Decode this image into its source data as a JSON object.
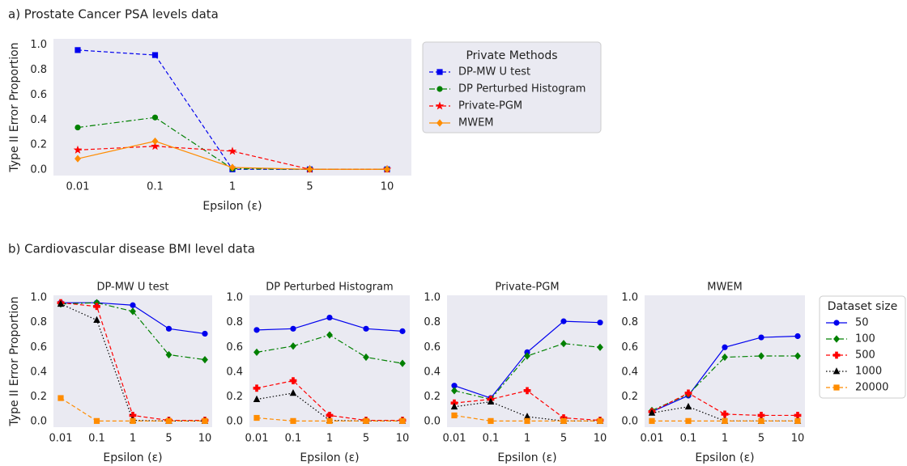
{
  "sections": [
    "a) Prostate Cancer PSA levels data",
    "b) Cardiovascular disease BMI level data"
  ],
  "legend_b": {
    "title": "Dataset size",
    "entries": [
      {
        "name": "50",
        "color": "#0000ee",
        "dash": "solid",
        "marker": "circle"
      },
      {
        "name": "100",
        "color": "#008000",
        "dash": "dashdot",
        "marker": "diamond"
      },
      {
        "name": "500",
        "color": "#ff0000",
        "dash": "dashed",
        "marker": "plus"
      },
      {
        "name": "1000",
        "color": "#000000",
        "dash": "dotted",
        "marker": "triangle"
      },
      {
        "name": "20000",
        "color": "#ff8c00",
        "dash": "dashed",
        "marker": "square"
      }
    ]
  },
  "chart_data": [
    {
      "type": "line",
      "ylabel": "Type II Error Proportion",
      "xlabel": "Epsilon (ε)",
      "legend_title": "Private Methods",
      "grid": false,
      "categories": [
        "0.01",
        "0.1",
        "1",
        "5",
        "10"
      ],
      "ylim": [
        -0.045,
        1.05
      ],
      "yticks": [
        {
          "value": 0,
          "label": "0.0"
        },
        0.2,
        0.4,
        0.6,
        0.8,
        {
          "value": 1,
          "label": "1.0"
        }
      ],
      "series": [
        {
          "name": "DP-MW U test",
          "color": "#0000ee",
          "dash": "dashed",
          "marker": "square",
          "values": [
            0.96,
            0.92,
            0.005,
            0.005,
            0.005
          ]
        },
        {
          "name": "DP Perturbed Histogram",
          "color": "#008000",
          "dash": "dashdot",
          "marker": "circle",
          "values": [
            0.34,
            0.42,
            0.01,
            0.005,
            0.005
          ]
        },
        {
          "name": "Private-PGM",
          "color": "#ff0000",
          "dash": "dashed",
          "marker": "star",
          "values": [
            0.16,
            0.19,
            0.15,
            0.005,
            0.005
          ]
        },
        {
          "name": "MWEM",
          "color": "#ff8c00",
          "dash": "solid",
          "marker": "diamond",
          "values": [
            0.09,
            0.23,
            0.02,
            0.005,
            0.005
          ]
        }
      ]
    },
    {
      "type": "line",
      "title": "DP-MW U test",
      "ylabel": "Type II Error Proportion",
      "xlabel": "Epsilon (ε)",
      "grid": false,
      "categories": [
        "0.01",
        "0.1",
        "1",
        "5",
        "10"
      ],
      "ylim": [
        -0.045,
        1.02
      ],
      "yticks": [
        {
          "value": 0,
          "label": "0.0"
        },
        0.2,
        0.4,
        0.6,
        0.8,
        {
          "value": 1,
          "label": "1.0"
        }
      ],
      "series": [
        {
          "values": [
            0.96,
            0.96,
            0.94,
            0.75,
            0.71
          ]
        },
        {
          "values": [
            0.95,
            0.96,
            0.89,
            0.54,
            0.5
          ]
        },
        {
          "values": [
            0.96,
            0.93,
            0.05,
            0.01,
            0.01
          ]
        },
        {
          "values": [
            0.95,
            0.82,
            0.01,
            0.005,
            0.005
          ]
        },
        {
          "values": [
            0.19,
            0.005,
            0.005,
            0.005,
            0.005
          ]
        }
      ]
    },
    {
      "type": "line",
      "title": "DP Perturbed Histogram",
      "xlabel": "Epsilon (ε)",
      "grid": false,
      "categories": [
        "0.01",
        "0.1",
        "1",
        "5",
        "10"
      ],
      "ylim": [
        -0.045,
        1.02
      ],
      "yticks": [
        {
          "value": 0,
          "label": "0.0"
        },
        0.2,
        0.4,
        0.6,
        0.8,
        {
          "value": 1,
          "label": "1.0"
        }
      ],
      "series": [
        {
          "values": [
            0.74,
            0.75,
            0.84,
            0.75,
            0.73
          ]
        },
        {
          "values": [
            0.56,
            0.61,
            0.7,
            0.52,
            0.47
          ]
        },
        {
          "values": [
            0.27,
            0.33,
            0.05,
            0.01,
            0.01
          ]
        },
        {
          "values": [
            0.18,
            0.23,
            0.01,
            0.005,
            0.005
          ]
        },
        {
          "values": [
            0.03,
            0.005,
            0.005,
            0.005,
            0.005
          ]
        }
      ]
    },
    {
      "type": "line",
      "title": "Private-PGM",
      "xlabel": "Epsilon (ε)",
      "grid": false,
      "categories": [
        "0.01",
        "0.1",
        "1",
        "5",
        "10"
      ],
      "ylim": [
        -0.045,
        1.02
      ],
      "yticks": [
        {
          "value": 0,
          "label": "0.0"
        },
        0.2,
        0.4,
        0.6,
        0.8,
        {
          "value": 1,
          "label": "1.0"
        }
      ],
      "series": [
        {
          "values": [
            0.29,
            0.19,
            0.56,
            0.81,
            0.8
          ]
        },
        {
          "values": [
            0.25,
            0.18,
            0.53,
            0.63,
            0.6
          ]
        },
        {
          "values": [
            0.15,
            0.18,
            0.25,
            0.03,
            0.01
          ]
        },
        {
          "values": [
            0.12,
            0.16,
            0.04,
            0.005,
            0.005
          ]
        },
        {
          "values": [
            0.05,
            0.005,
            0.005,
            0.005,
            0.005
          ]
        }
      ]
    },
    {
      "type": "line",
      "title": "MWEM",
      "xlabel": "Epsilon (ε)",
      "grid": false,
      "categories": [
        "0.01",
        "0.1",
        "1",
        "5",
        "10"
      ],
      "ylim": [
        -0.045,
        1.02
      ],
      "yticks": [
        {
          "value": 0,
          "label": "0.0"
        },
        0.2,
        0.4,
        0.6,
        0.8,
        {
          "value": 1,
          "label": "1.0"
        }
      ],
      "series": [
        {
          "values": [
            0.08,
            0.21,
            0.6,
            0.68,
            0.69
          ]
        },
        {
          "values": [
            0.09,
            0.22,
            0.52,
            0.53,
            0.53
          ]
        },
        {
          "values": [
            0.08,
            0.23,
            0.06,
            0.05,
            0.05
          ]
        },
        {
          "values": [
            0.07,
            0.12,
            0.005,
            0.005,
            0.005
          ]
        },
        {
          "values": [
            0.005,
            0.005,
            0.005,
            0.005,
            0.005
          ]
        }
      ]
    }
  ]
}
